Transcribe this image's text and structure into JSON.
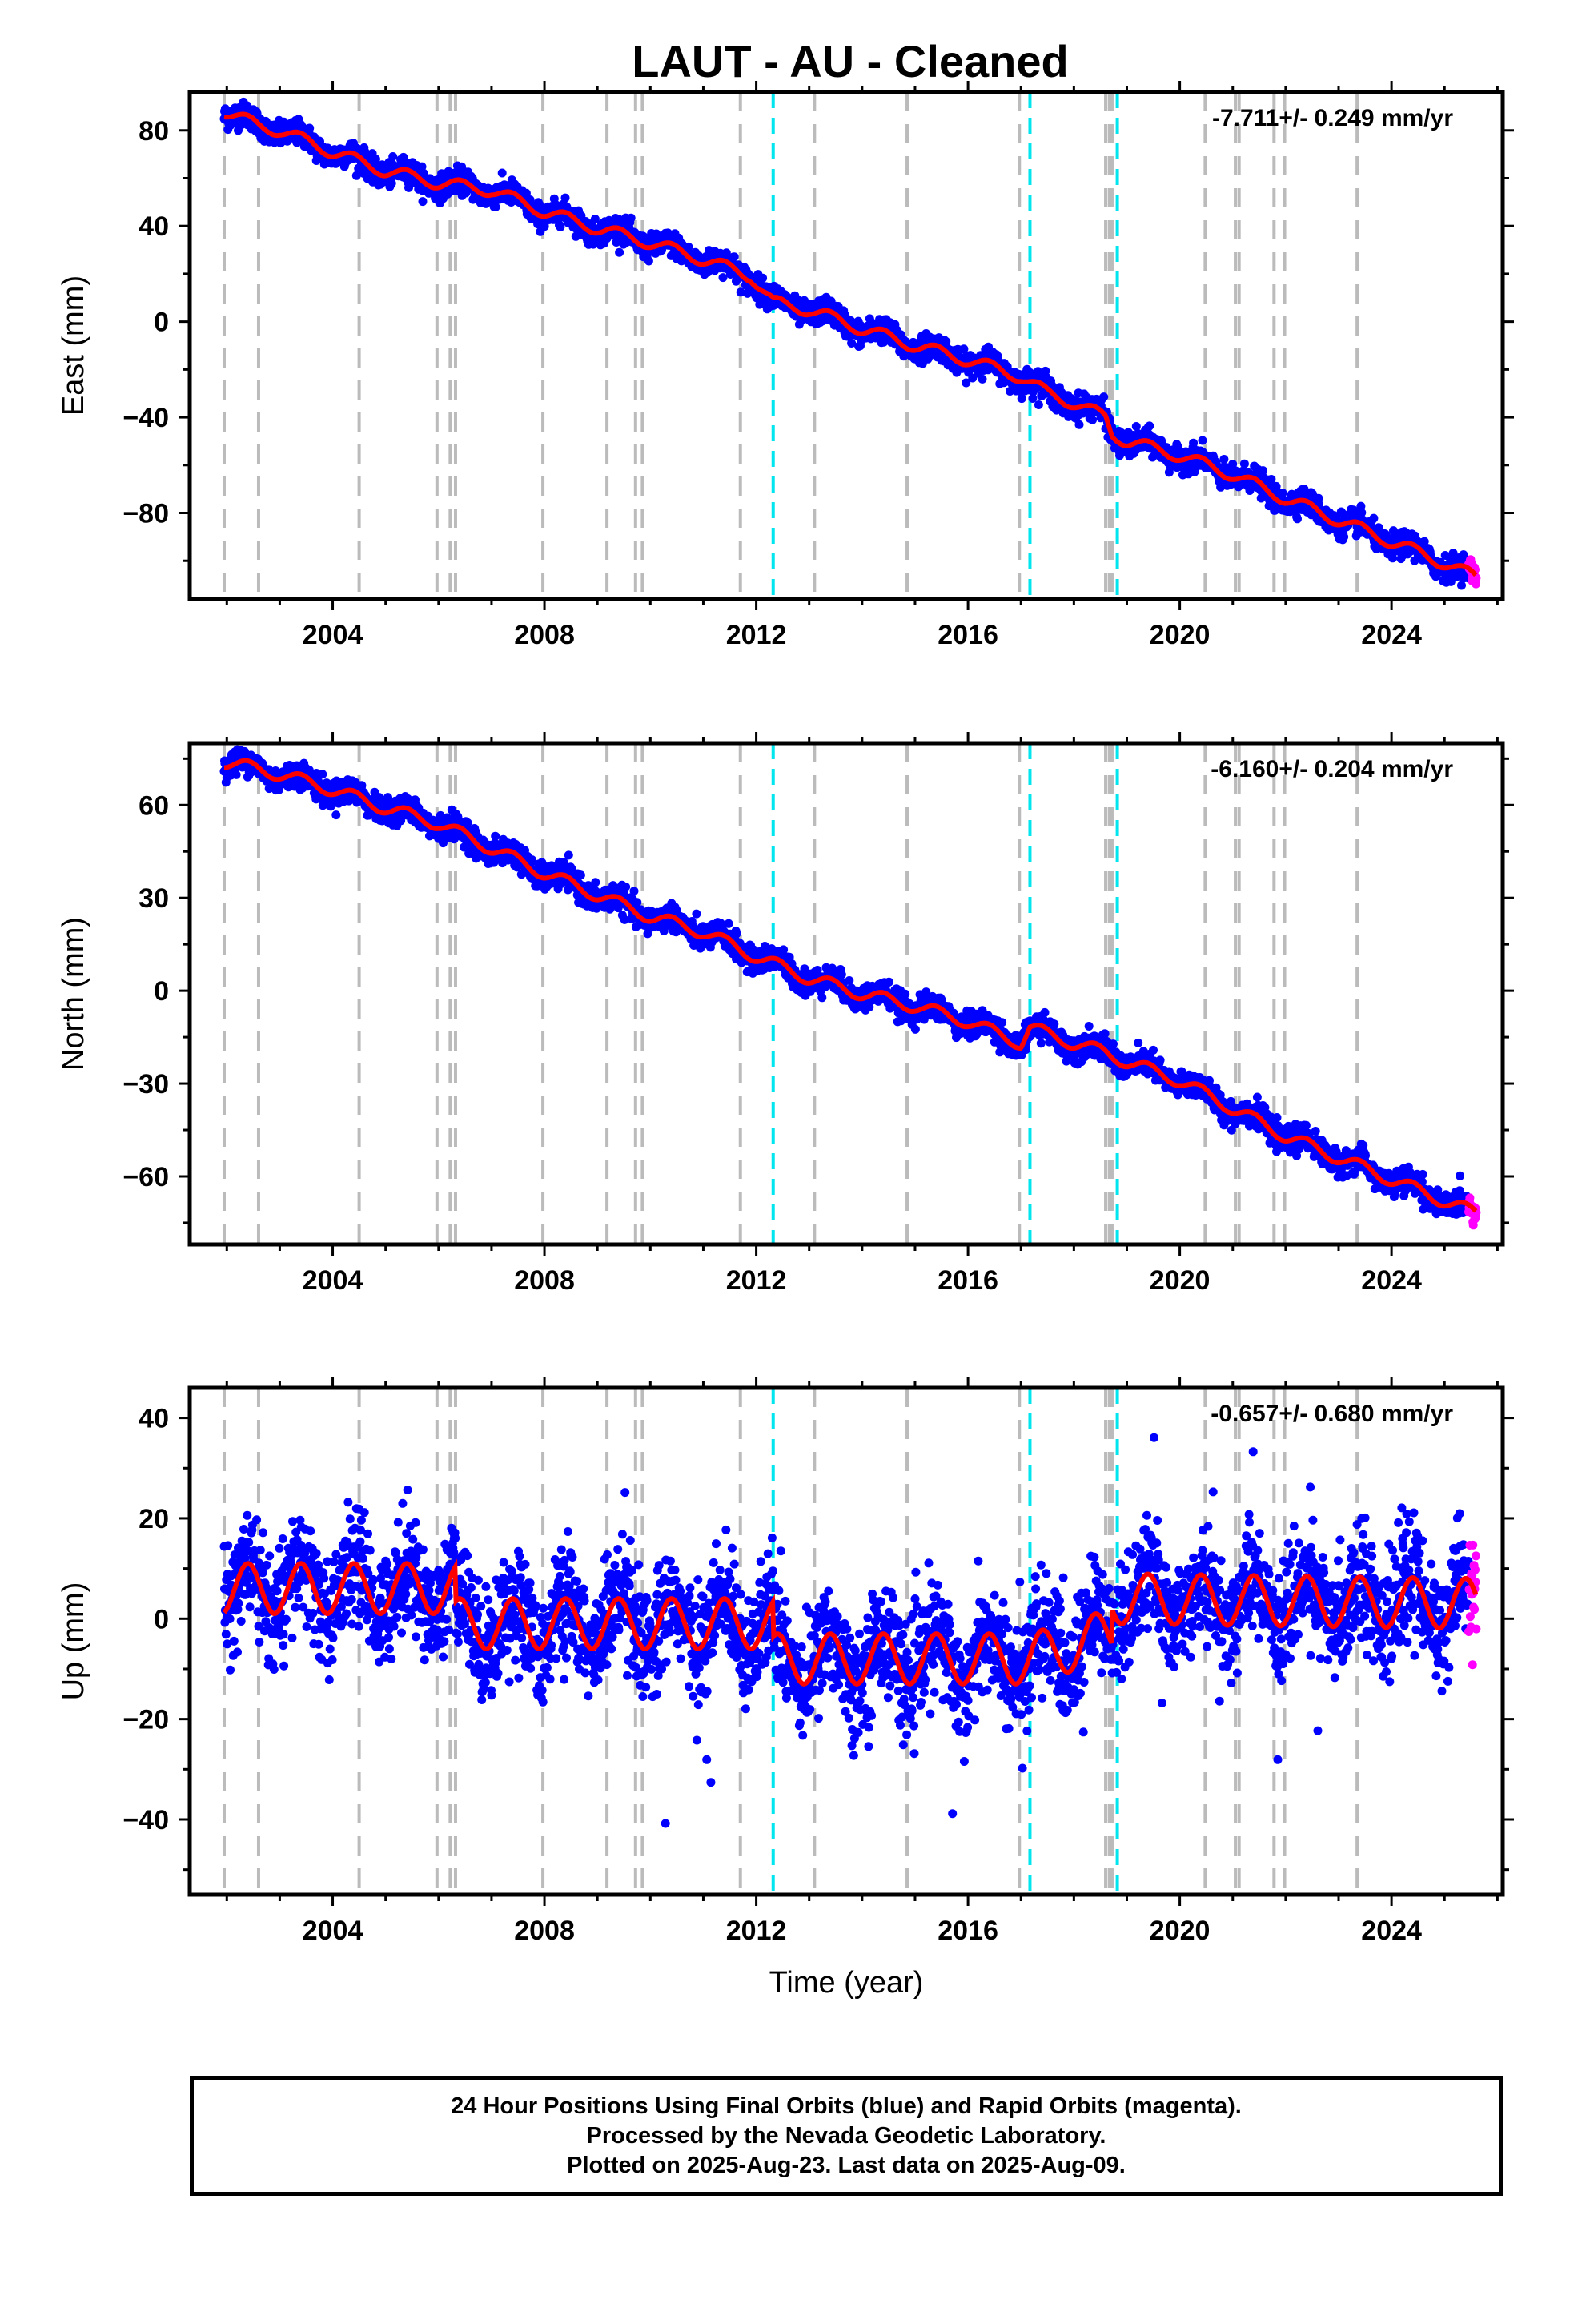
{
  "chart_data": {
    "title": "LAUT  - AU - Cleaned",
    "xlabel": "Time (year)",
    "xlim": [
      2001.3,
      2026.1
    ],
    "xticks": [
      2004,
      2008,
      2012,
      2016,
      2020,
      2024
    ],
    "data_start": 2001.95,
    "data_end": 2025.6,
    "rapid_start": 2025.45,
    "colors": {
      "final_orbits": "#0000ff",
      "rapid_orbits": "#ff00ff",
      "model": "#ff0000",
      "equipment_change": "#bbbbbb",
      "earthquake": "#00e5ee"
    },
    "equipment_change_lines": [
      2001.95,
      2002.6,
      2004.5,
      2005.97,
      2006.22,
      2006.32,
      2007.97,
      2009.18,
      2009.72,
      2009.85,
      2011.7,
      2013.1,
      2014.85,
      2016.97,
      2018.6,
      2018.67,
      2018.72,
      2020.48,
      2021.05,
      2021.12,
      2021.78,
      2021.98,
      2023.35
    ],
    "earthquake_lines": [
      2012.32,
      2017.17,
      2018.82
    ],
    "panels": [
      {
        "type": "scatter",
        "name": "east",
        "ylabel": "East (mm)",
        "rate_text": "-7.711+/- 0.249 mm/yr",
        "rate": -7.711,
        "ylim": [
          -116,
          96
        ],
        "yticks": [
          -80,
          -40,
          0,
          40,
          80
        ],
        "model_curve": [
          [
            2001.95,
            88
          ],
          [
            2002.6,
            82
          ],
          [
            2003.0,
            80
          ],
          [
            2004.0,
            71
          ],
          [
            2005.0,
            63
          ],
          [
            2006.0,
            58
          ],
          [
            2007.0,
            55
          ],
          [
            2008.0,
            46
          ],
          [
            2009.0,
            39
          ],
          [
            2010.0,
            33
          ],
          [
            2011.0,
            26
          ],
          [
            2011.9,
            19
          ],
          [
            2012.32,
            8
          ],
          [
            2013.0,
            5
          ],
          [
            2014.0,
            -3
          ],
          [
            2015.0,
            -10
          ],
          [
            2016.0,
            -16
          ],
          [
            2017.0,
            -23
          ],
          [
            2017.5,
            -30
          ],
          [
            2018.0,
            -34
          ],
          [
            2018.6,
            -40
          ],
          [
            2018.72,
            -47
          ],
          [
            2019.0,
            -50
          ],
          [
            2020.0,
            -56
          ],
          [
            2021.0,
            -64
          ],
          [
            2022.0,
            -74
          ],
          [
            2023.0,
            -83
          ],
          [
            2024.0,
            -92
          ],
          [
            2025.0,
            -101
          ],
          [
            2025.6,
            -107
          ]
        ],
        "seasonal_amplitude": 2.5,
        "noise": 2.5
      },
      {
        "type": "scatter",
        "name": "north",
        "ylabel": "North (mm)",
        "rate_text": "-6.160+/- 0.204 mm/yr",
        "rate": -6.16,
        "ylim": [
          -82,
          80
        ],
        "yticks": [
          -60,
          -30,
          0,
          30,
          60
        ],
        "model_curve": [
          [
            2001.95,
            74
          ],
          [
            2003.0,
            70
          ],
          [
            2004.0,
            65
          ],
          [
            2005.0,
            59
          ],
          [
            2006.0,
            54
          ],
          [
            2007.0,
            46
          ],
          [
            2008.0,
            38
          ],
          [
            2009.0,
            31
          ],
          [
            2010.0,
            24
          ],
          [
            2011.0,
            19
          ],
          [
            2012.0,
            11
          ],
          [
            2013.0,
            4
          ],
          [
            2014.0,
            -1
          ],
          [
            2015.0,
            -5
          ],
          [
            2016.0,
            -10
          ],
          [
            2017.0,
            -17
          ],
          [
            2017.17,
            -12
          ],
          [
            2018.0,
            -17
          ],
          [
            2018.6,
            -20
          ],
          [
            2019.0,
            -23
          ],
          [
            2020.0,
            -29
          ],
          [
            2021.0,
            -38
          ],
          [
            2022.0,
            -47
          ],
          [
            2023.0,
            -54
          ],
          [
            2024.0,
            -61
          ],
          [
            2025.0,
            -68
          ],
          [
            2025.6,
            -72
          ]
        ],
        "seasonal_amplitude": 2.0,
        "noise": 2.0
      },
      {
        "type": "scatter",
        "name": "up",
        "ylabel": "Up (mm)",
        "rate_text": "-0.657+/- 0.680 mm/yr",
        "rate": -0.657,
        "ylim": [
          -55,
          46
        ],
        "yticks": [
          -40,
          -20,
          0,
          20,
          40
        ],
        "model_curve": [
          [
            2001.95,
            6
          ],
          [
            2006.32,
            6
          ],
          [
            2006.33,
            -1
          ],
          [
            2012.32,
            -1
          ],
          [
            2012.33,
            -8
          ],
          [
            2017.17,
            -8
          ],
          [
            2018.72,
            -3
          ],
          [
            2018.73,
            4
          ],
          [
            2025.6,
            3
          ]
        ],
        "seasonal_amplitude": 5.0,
        "noise": 5.5
      }
    ],
    "footer": [
      "24 Hour Positions Using Final Orbits (blue) and Rapid Orbits (magenta).",
      "Processed by the Nevada Geodetic Laboratory.",
      "Plotted on 2025-Aug-23. Last data on 2025-Aug-09."
    ]
  }
}
